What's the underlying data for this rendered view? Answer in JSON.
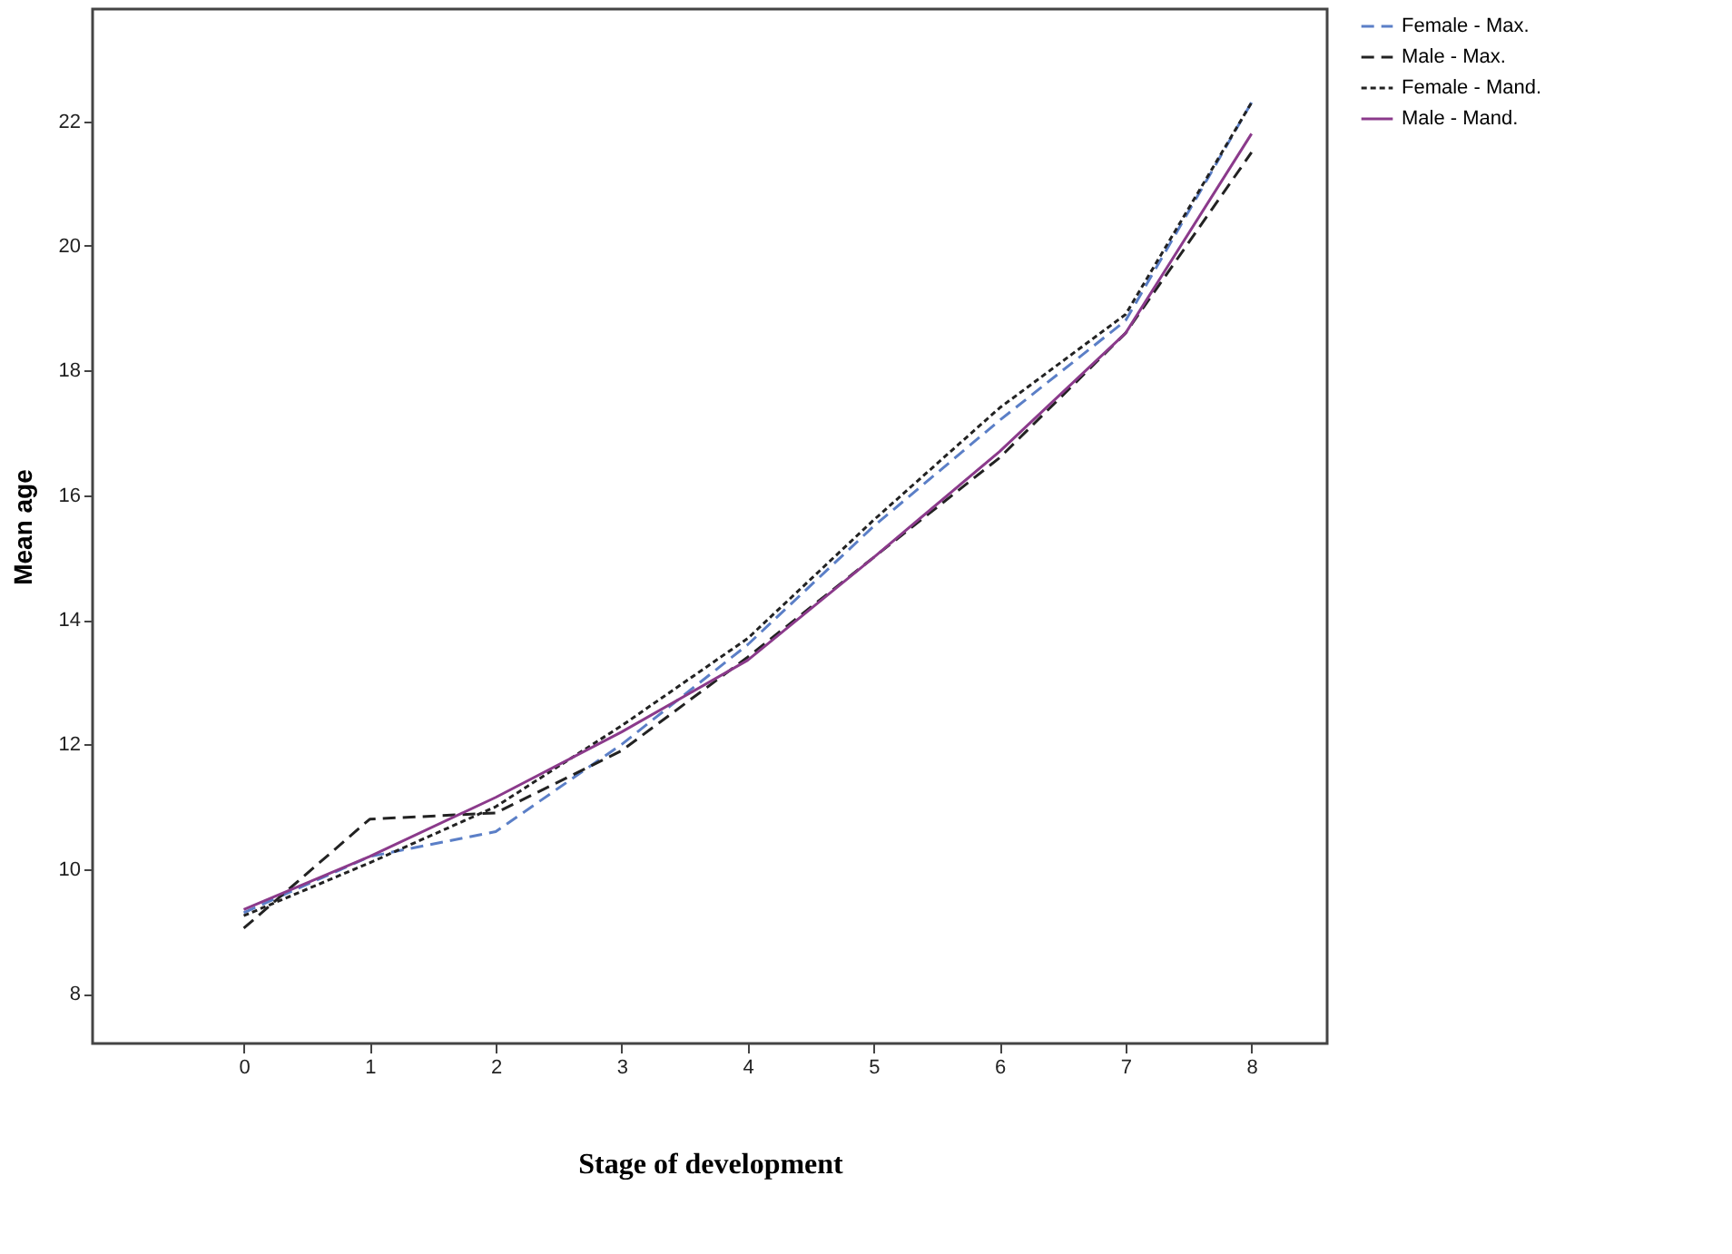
{
  "chart_data": {
    "type": "line",
    "xlabel": "Stage of development",
    "ylabel": "Mean age",
    "x": [
      0,
      1,
      2,
      3,
      4,
      5,
      6,
      7,
      8
    ],
    "xlim": [
      -1.2,
      8.6
    ],
    "xticks": [
      0,
      1,
      2,
      3,
      4,
      5,
      6,
      7,
      8
    ],
    "ylim": [
      7.2,
      23.8
    ],
    "yticks": [
      8,
      10,
      12,
      14,
      16,
      18,
      20,
      22
    ],
    "grid": false,
    "legend": "right",
    "marker": "none",
    "series": [
      {
        "name": "Female - Max.",
        "color": "#5b7fc7",
        "line_style": "dashed",
        "values": [
          9.3,
          10.2,
          10.6,
          12.0,
          13.6,
          15.5,
          17.2,
          18.8,
          22.3
        ]
      },
      {
        "name": "Male - Max.",
        "color": "#222222",
        "line_style": "dashed",
        "values": [
          9.05,
          10.8,
          10.9,
          11.9,
          13.4,
          15.0,
          16.6,
          18.6,
          21.5
        ]
      },
      {
        "name": "Female - Mand.",
        "color": "#222222",
        "line_style": "dotted",
        "values": [
          9.25,
          10.1,
          11.0,
          12.3,
          13.7,
          15.6,
          17.4,
          18.9,
          22.3
        ]
      },
      {
        "name": "Male - Mand.",
        "color": "#8b3a8b",
        "line_style": "solid",
        "values": [
          9.35,
          10.2,
          11.15,
          12.2,
          13.35,
          15.0,
          16.7,
          18.6,
          21.8
        ]
      }
    ]
  }
}
